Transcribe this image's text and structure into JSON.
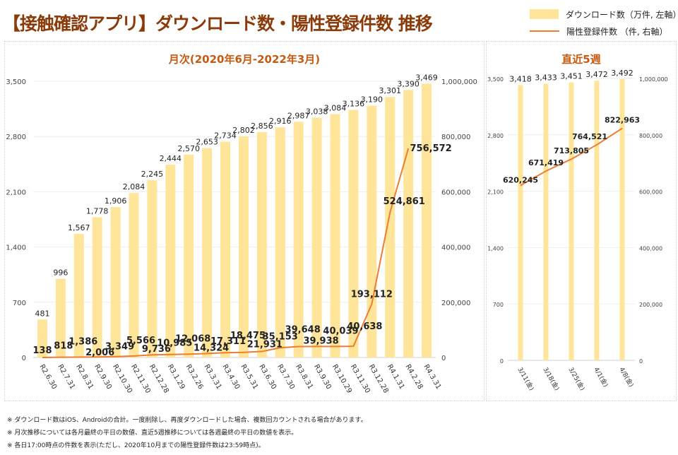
{
  "page_title": "【接触確認アプリ】ダウンロード数・陽性登録件数 推移",
  "legend": {
    "downloads": "ダウンロード数（万件, 左軸）",
    "positives": "陽性登録件数 （件, 右軸）"
  },
  "colors": {
    "bar": "#ffe599",
    "line": "#ed7d31",
    "title": "#8b3a0a",
    "panel_title": "#c55a11"
  },
  "notes": [
    "※ ダウンロード数はiOS、Androidの合計。一度削除し、再度ダウンロードした場合、複数回カウントされる場合があります。",
    "※ 月次推移については各月最終の平日の数値、直近5週推移については各週最終の平日の数値を表示。",
    "※ 各日17:00時点の件数を表示(ただし、2020年10月までの陽性登録件数は23:59時点)。"
  ],
  "chart_data": [
    {
      "type": "bar",
      "title": "月次(2020年6月-2022年3月)",
      "xlabel": "",
      "ylabel": "",
      "categories": [
        "R2.6.30",
        "R2.7.31",
        "R2.8.31",
        "R2.9.30",
        "R2.10.30",
        "R2.11.30",
        "R2.12.28",
        "R3.1.29",
        "R3.2.26",
        "R3.3.31",
        "R3.4.30",
        "R3.5.31",
        "R3.6.30",
        "R3.7.30",
        "R3.8.31",
        "R3.9.30",
        "R3.10.29",
        "R3.11.30",
        "R3.12.28",
        "R4.1.31",
        "R4.2.28",
        "R4.3.31"
      ],
      "series": [
        {
          "name": "ダウンロード数（万件, 左軸）",
          "type": "bar",
          "axis": "left",
          "values": [
            481,
            996,
            1567,
            1778,
            1906,
            2084,
            2245,
            2444,
            2570,
            2653,
            2734,
            2802,
            2856,
            2916,
            2987,
            3038,
            3084,
            3136,
            3190,
            3301,
            3390,
            3469
          ]
        },
        {
          "name": "陽性登録件数 （件, 右軸）",
          "type": "line",
          "axis": "right",
          "values": [
            138,
            818,
            1386,
            2006,
            3349,
            5566,
            9736,
            10985,
            12068,
            14324,
            17311,
            18475,
            21931,
            35153,
            39648,
            39938,
            40039,
            40638,
            193112,
            524861,
            756572,
            null
          ]
        }
      ],
      "ylim_left": [
        0,
        3500
      ],
      "yticks_left": [
        "0",
        "700",
        "1,400",
        "2,100",
        "2,800",
        "3,500"
      ],
      "ylim_right": [
        0,
        1000000
      ],
      "yticks_right": [
        "0",
        "200,000",
        "400,000",
        "600,000",
        "800,000",
        "1,000,000"
      ],
      "grid": true,
      "legend": "top-right"
    },
    {
      "type": "bar",
      "title": "直近5週",
      "xlabel": "",
      "ylabel": "",
      "categories": [
        "3/11(金)",
        "3/18(金)",
        "3/25(金)",
        "4/1(金)",
        "4/8(金)"
      ],
      "series": [
        {
          "name": "ダウンロード数（万件, 左軸）",
          "type": "bar",
          "axis": "left",
          "values": [
            3418,
            3433,
            3451,
            3472,
            3492
          ]
        },
        {
          "name": "陽性登録件数 （件, 右軸）",
          "type": "line",
          "axis": "right",
          "values": [
            620245,
            671419,
            713805,
            764521,
            822963
          ]
        }
      ],
      "ylim_left": [
        0,
        3500
      ],
      "yticks_left": [
        "0",
        "700",
        "1,400",
        "2,100",
        "2,800",
        "3,500"
      ],
      "ylim_right": [
        0,
        1000000
      ],
      "yticks_right": [
        "0",
        "200,000",
        "400,000",
        "600,000",
        "800,000",
        "1,000,000"
      ],
      "grid": true
    }
  ]
}
